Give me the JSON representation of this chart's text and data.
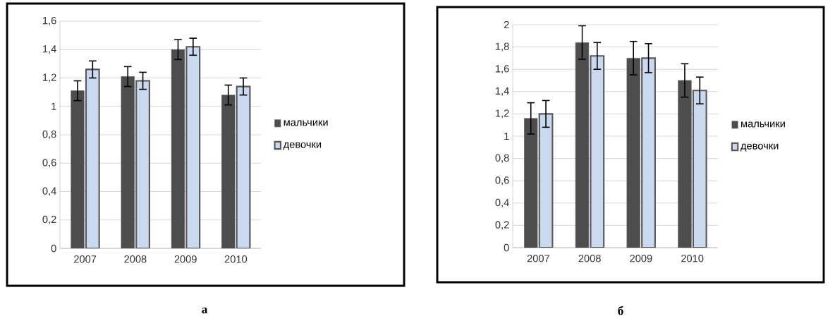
{
  "chart_data": [
    {
      "type": "bar",
      "categories": [
        "2007",
        "2008",
        "2009",
        "2010"
      ],
      "series": [
        {
          "name": "мальчики",
          "color": "#4d4d4d",
          "values": [
            1.11,
            1.21,
            1.4,
            1.08
          ],
          "errors": [
            0.07,
            0.07,
            0.07,
            0.07
          ]
        },
        {
          "name": "девочки",
          "color": "#c9d9f0",
          "values": [
            1.26,
            1.18,
            1.42,
            1.14
          ],
          "errors": [
            0.06,
            0.06,
            0.06,
            0.06
          ]
        }
      ],
      "ylim": [
        0,
        1.6
      ],
      "yticks": [
        0,
        {
          "value": 0.2,
          "label": "0,2"
        },
        {
          "value": 0.4,
          "label": "0,4"
        },
        {
          "value": 0.6,
          "label": "0,6"
        },
        {
          "value": 0.8,
          "label": "0,8"
        },
        1,
        {
          "value": 1.2,
          "label": "1,2"
        },
        {
          "value": 1.4,
          "label": "1,4"
        },
        {
          "value": 1.6,
          "label": "1,6"
        }
      ],
      "grid": "y",
      "legend": "right",
      "annotations": [
        "а"
      ]
    },
    {
      "type": "bar",
      "categories": [
        "2007",
        "2008",
        "2009",
        "2010"
      ],
      "series": [
        {
          "name": "мальчики",
          "color": "#4d4d4d",
          "values": [
            1.16,
            1.84,
            1.7,
            1.5
          ],
          "errors": [
            0.14,
            0.15,
            0.15,
            0.15
          ]
        },
        {
          "name": "девочки",
          "color": "#c9d9f0",
          "values": [
            1.2,
            1.72,
            1.7,
            1.41
          ],
          "errors": [
            0.12,
            0.12,
            0.13,
            0.12
          ]
        }
      ],
      "ylim": [
        0,
        2
      ],
      "yticks": [
        0,
        {
          "value": 0.2,
          "label": "0,2"
        },
        {
          "value": 0.4,
          "label": "0,4"
        },
        {
          "value": 0.6,
          "label": "0,6"
        },
        {
          "value": 0.8,
          "label": "0,8"
        },
        1,
        {
          "value": 1.2,
          "label": "1,2"
        },
        {
          "value": 1.4,
          "label": "1,4"
        },
        {
          "value": 1.6,
          "label": "1,6"
        },
        {
          "value": 1.8,
          "label": "1,8"
        },
        2
      ],
      "grid": "y",
      "legend": "right",
      "annotations": [
        "б"
      ]
    }
  ]
}
